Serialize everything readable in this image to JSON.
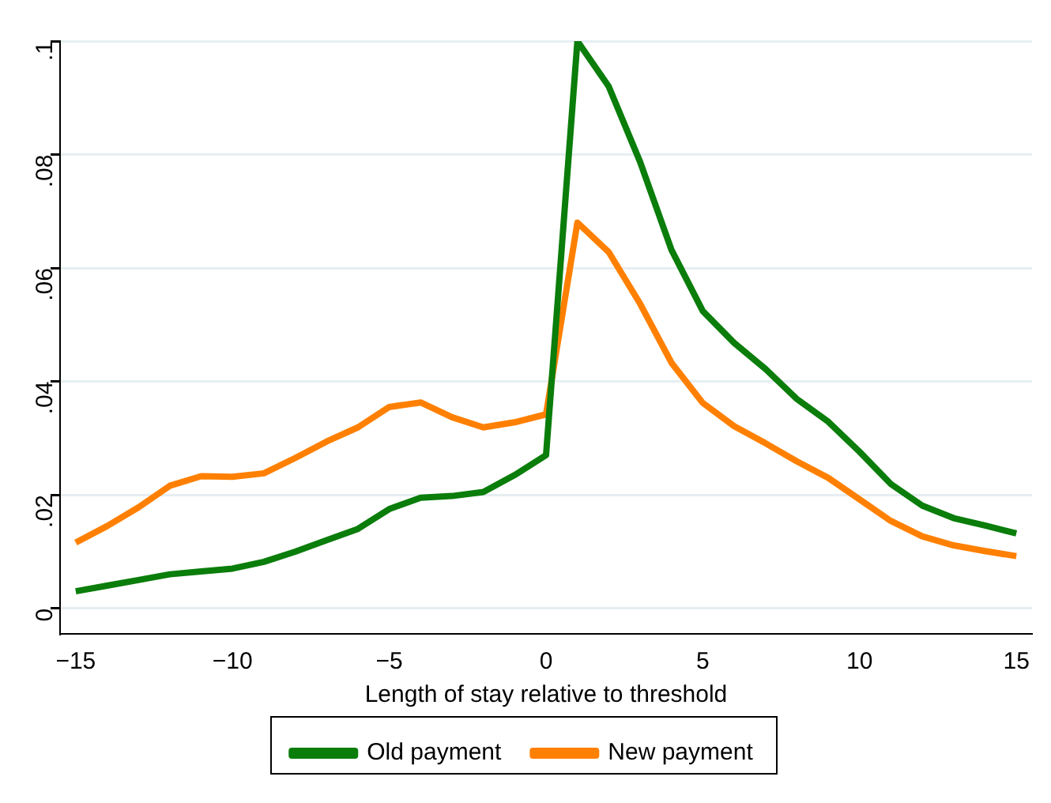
{
  "chart_data": {
    "type": "line",
    "xlabel": "Length of stay relative to threshold",
    "x": [
      -15,
      -14,
      -13,
      -12,
      -11,
      -10,
      -9,
      -8,
      -7,
      -6,
      -5,
      -4,
      -3,
      -2,
      -1,
      0,
      1,
      2,
      3,
      4,
      5,
      6,
      7,
      8,
      9,
      10,
      11,
      12,
      13,
      14,
      15
    ],
    "series": [
      {
        "name": "Old payment",
        "color": "#0a7d0a",
        "values": [
          0.003,
          0.004,
          0.005,
          0.006,
          0.0065,
          0.007,
          0.0082,
          0.01,
          0.012,
          0.014,
          0.0175,
          0.0195,
          0.0198,
          0.0205,
          0.0235,
          0.027,
          0.1,
          0.092,
          0.0787,
          0.0632,
          0.0524,
          0.0468,
          0.0422,
          0.0369,
          0.0329,
          0.0276,
          0.0219,
          0.0181,
          0.0159,
          0.0146,
          0.0132
        ]
      },
      {
        "name": "New payment",
        "color": "#ff8000",
        "values": [
          0.0116,
          0.0145,
          0.0178,
          0.0216,
          0.0233,
          0.0232,
          0.0238,
          0.0265,
          0.0294,
          0.0319,
          0.0355,
          0.0363,
          0.0337,
          0.0319,
          0.0328,
          0.0342,
          0.068,
          0.0628,
          0.0537,
          0.0433,
          0.0362,
          0.0321,
          0.0291,
          0.0259,
          0.023,
          0.0192,
          0.0154,
          0.0127,
          0.0111,
          0.0101,
          0.0092
        ]
      }
    ],
    "xlim": [
      -15.5,
      15.5
    ],
    "xticks": [
      {
        "value": -15,
        "label": "−15"
      },
      {
        "value": -10,
        "label": "−10"
      },
      {
        "value": -5,
        "label": "−5"
      },
      0,
      5,
      10,
      15
    ],
    "ylim": [
      -0.0045,
      0.1
    ],
    "yticks": [
      0,
      {
        "value": 0.02,
        "label": ".02"
      },
      {
        "value": 0.04,
        "label": ".04"
      },
      {
        "value": 0.06,
        "label": ".06"
      },
      {
        "value": 0.08,
        "label": ".08"
      },
      {
        "value": 0.1,
        "label": ".1"
      }
    ],
    "grid": "y",
    "legend": "bottom",
    "marker": "none",
    "line_style": "solid"
  }
}
